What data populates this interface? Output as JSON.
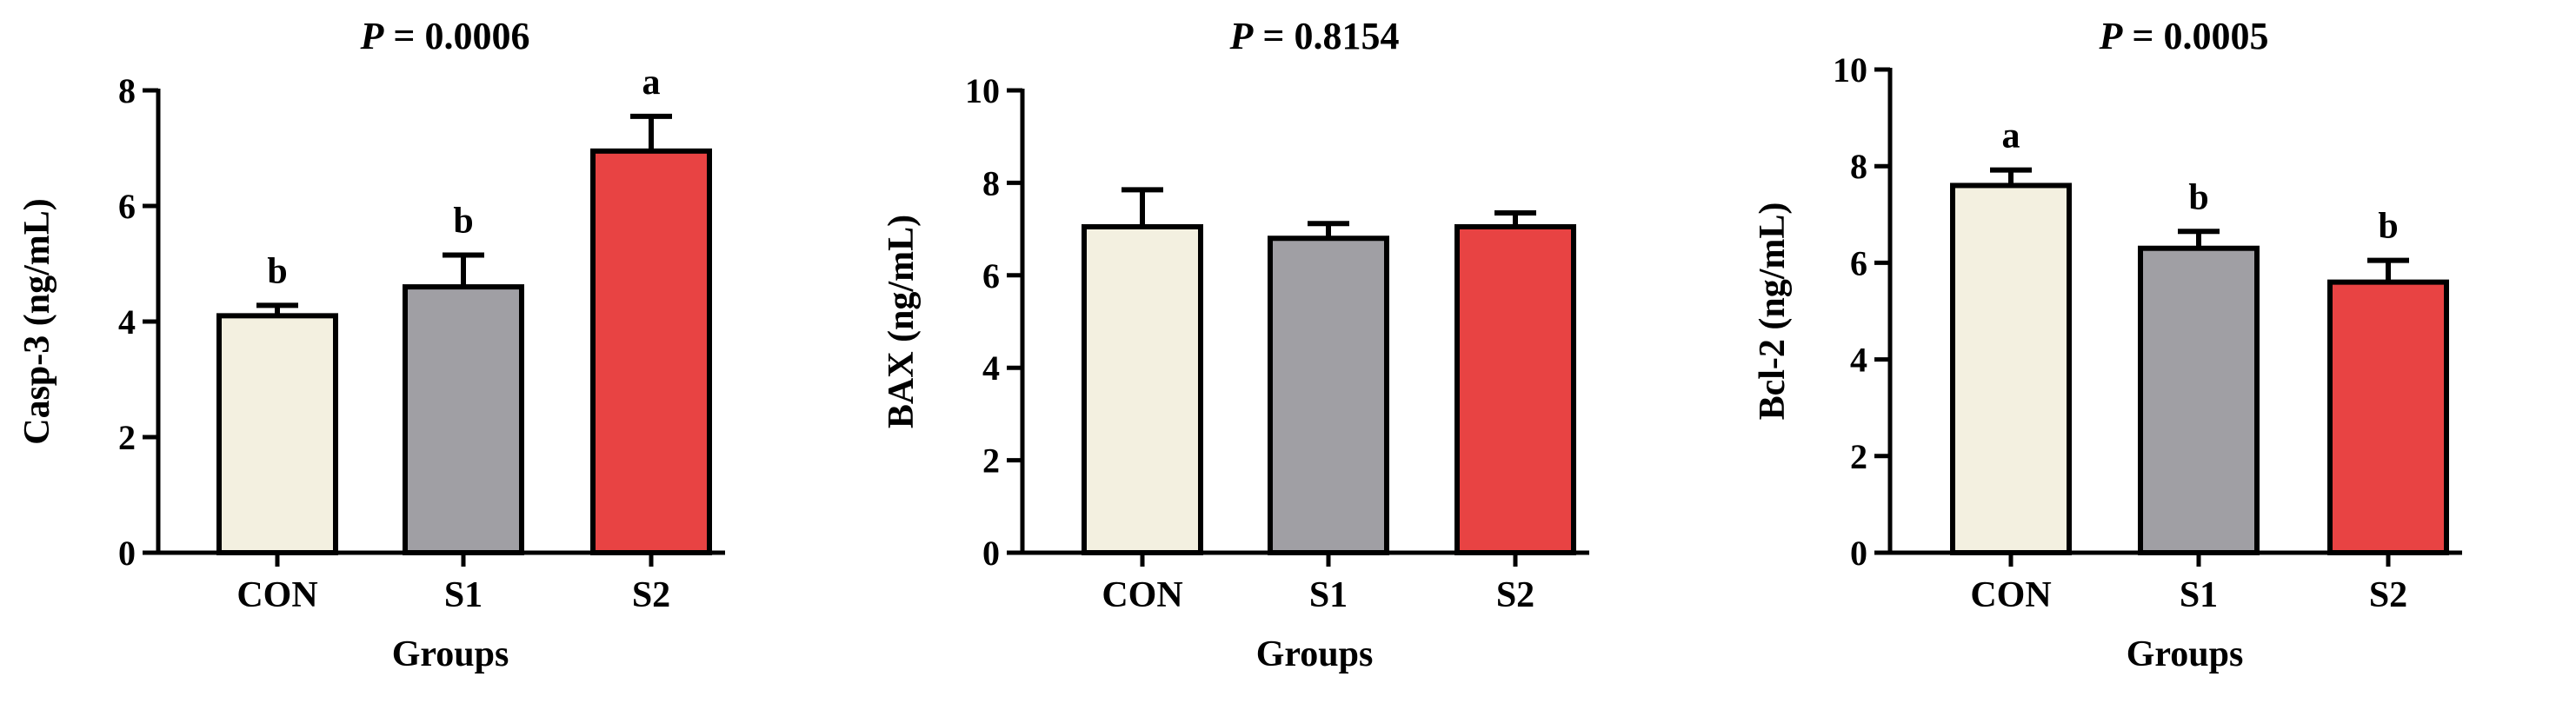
{
  "chart_data": [
    {
      "type": "bar",
      "title_prefix": "P",
      "title_value": " = 0.0006",
      "xlabel": "Groups",
      "ylabel": "Casp-3 (ng/mL)",
      "categories": [
        "CON",
        "S1",
        "S2"
      ],
      "values": [
        4.1,
        4.6,
        6.95
      ],
      "errors": [
        0.18,
        0.55,
        0.6
      ],
      "letters": [
        "b",
        "b",
        "a"
      ],
      "ylim": [
        0,
        8
      ],
      "yticks": [
        "0",
        "2",
        "4",
        "6",
        "8"
      ],
      "colors": [
        "#f3f0e0",
        "#a09fa4",
        "#e84343"
      ],
      "grid": false
    },
    {
      "type": "bar",
      "title_prefix": "P",
      "title_value": " = 0.8154",
      "xlabel": "Groups",
      "ylabel": "BAX (ng/mL)",
      "categories": [
        "CON",
        "S1",
        "S2"
      ],
      "values": [
        7.05,
        6.8,
        7.05
      ],
      "errors": [
        0.8,
        0.32,
        0.3
      ],
      "letters": [
        "",
        "",
        ""
      ],
      "ylim": [
        0,
        10
      ],
      "yticks": [
        "0",
        "2",
        "4",
        "6",
        "8",
        "10"
      ],
      "colors": [
        "#f3f0e0",
        "#a09fa4",
        "#e84343"
      ],
      "grid": false
    },
    {
      "type": "bar",
      "title_prefix": "P",
      "title_value": " = 0.0005",
      "xlabel": "Groups",
      "ylabel": "Bcl-2 (ng/mL)",
      "categories": [
        "CON",
        "S1",
        "S2"
      ],
      "values": [
        7.6,
        6.3,
        5.6
      ],
      "errors": [
        0.32,
        0.35,
        0.45
      ],
      "letters": [
        "a",
        "b",
        "b"
      ],
      "ylim": [
        0,
        10
      ],
      "yticks": [
        "0",
        "2",
        "4",
        "6",
        "8",
        "10"
      ],
      "colors": [
        "#f3f0e0",
        "#a09fa4",
        "#e84343"
      ],
      "grid": false
    }
  ]
}
